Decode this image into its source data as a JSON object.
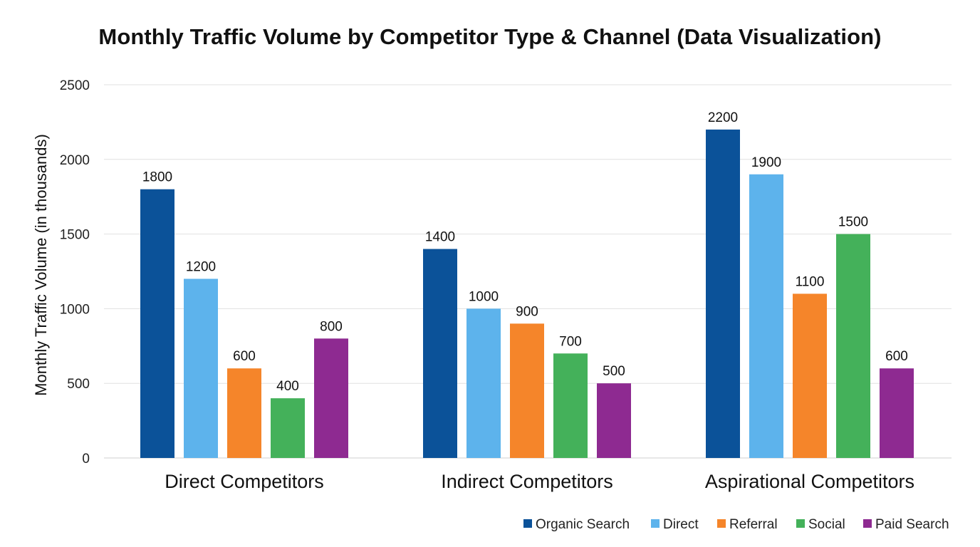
{
  "chart_data": {
    "type": "bar",
    "title": "Monthly Traffic Volume by Competitor Type & Channel (Data Visualization)",
    "xlabel": "",
    "ylabel": "Monthly Traffic Volume (in thousands)",
    "ylim": [
      0,
      2500
    ],
    "yticks": [
      0,
      500,
      1000,
      1500,
      2000,
      2500
    ],
    "grid": true,
    "legend_position": "bottom-right",
    "categories": [
      "Direct Competitors",
      "Indirect Competitors",
      "Aspirational Competitors"
    ],
    "series": [
      {
        "name": "Organic Search",
        "color": "#0b5299",
        "values": [
          1800,
          1400,
          2200
        ]
      },
      {
        "name": "Direct",
        "color": "#5db3ec",
        "values": [
          1200,
          1000,
          1900
        ]
      },
      {
        "name": "Referral",
        "color": "#f5852a",
        "values": [
          600,
          900,
          1100
        ]
      },
      {
        "name": "Social",
        "color": "#44b15a",
        "values": [
          400,
          700,
          1500
        ]
      },
      {
        "name": "Paid Search",
        "color": "#8e2a91",
        "values": [
          800,
          500,
          600
        ]
      }
    ]
  }
}
